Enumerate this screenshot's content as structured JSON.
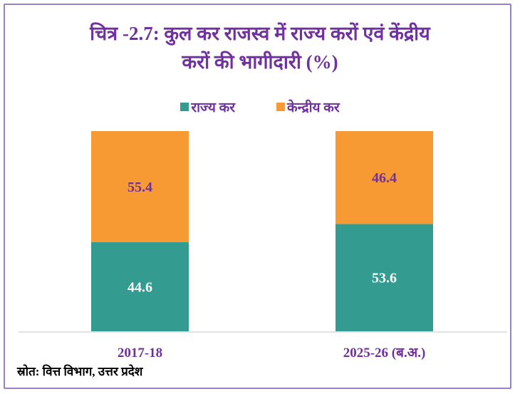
{
  "chart_data": {
    "type": "bar",
    "stacked": true,
    "title_line1": "चित्र -2.7: कुल कर राजस्व में राज्य करों एवं केंद्रीय",
    "title_line2": "करों की भागीदारी (%)",
    "categories": [
      "2017-18",
      "2025-26 (ब.अ.)"
    ],
    "series": [
      {
        "name": "राज्य कर",
        "values": [
          44.6,
          53.6
        ],
        "color": "#339b8f",
        "label_color": "#ffffff"
      },
      {
        "name": "केन्द्रीय कर",
        "values": [
          55.4,
          46.4
        ],
        "color": "#f79a33",
        "label_color": "#7030a0"
      }
    ],
    "ylim": [
      0,
      100
    ],
    "grid": false,
    "legend_position": "top",
    "source": "स्रोत: वित्त विभाग, उत्तर प्रदेश"
  },
  "colors": {
    "title": "#7030a0",
    "border": "#9b7fc4"
  }
}
